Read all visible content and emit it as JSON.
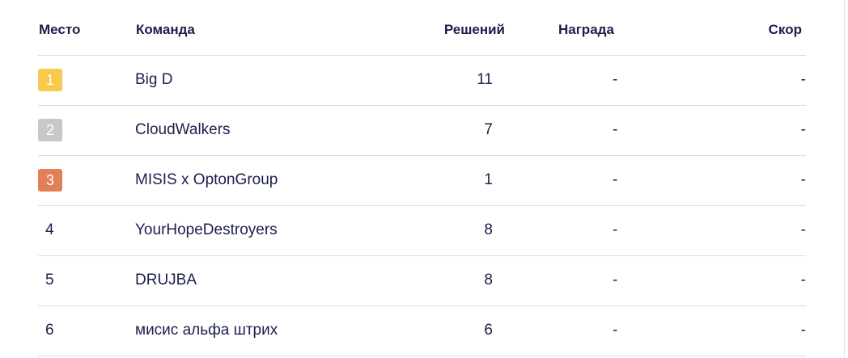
{
  "columns": {
    "place": "Место",
    "team": "Команда",
    "solved": "Решений",
    "reward": "Награда",
    "score": "Скор"
  },
  "medal_colors": {
    "1": "#f8c94b",
    "2": "#c8c8c8",
    "3": "#e07f58"
  },
  "rows": [
    {
      "place": "1",
      "team": "Big D",
      "solved": "11",
      "reward": "-",
      "score": "-"
    },
    {
      "place": "2",
      "team": "CloudWalkers",
      "solved": "7",
      "reward": "-",
      "score": "-"
    },
    {
      "place": "3",
      "team": "MISIS x OptonGroup",
      "solved": "1",
      "reward": "-",
      "score": "-"
    },
    {
      "place": "4",
      "team": "YourHopeDestroyers",
      "solved": "8",
      "reward": "-",
      "score": "-"
    },
    {
      "place": "5",
      "team": "DRUJBA",
      "solved": "8",
      "reward": "-",
      "score": "-"
    },
    {
      "place": "6",
      "team": "мисис альфа штрих",
      "solved": "6",
      "reward": "-",
      "score": "-"
    }
  ]
}
